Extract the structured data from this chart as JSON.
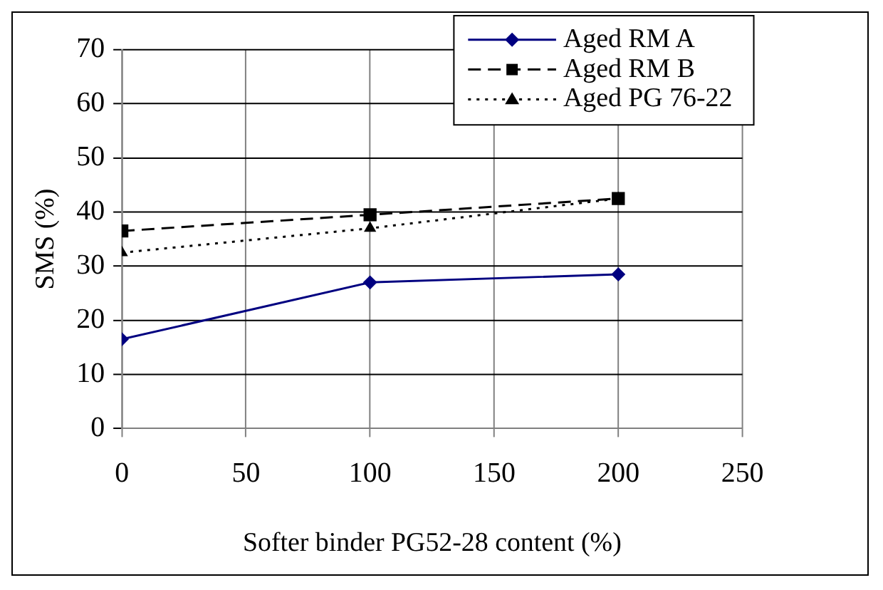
{
  "chart_data": {
    "type": "line",
    "xlabel": "Softer binder PG52-28 content (%)",
    "ylabel": "SMS (%)",
    "x": [
      0,
      100,
      200
    ],
    "series": [
      {
        "name": "Aged RM A",
        "color": "#000080",
        "values": [
          16.5,
          27,
          28.5
        ],
        "marker": "diamond",
        "line_style": "solid"
      },
      {
        "name": "Aged RM B",
        "color": "#000000",
        "values": [
          36.5,
          39.5,
          42.5
        ],
        "marker": "square",
        "line_style": "dashed"
      },
      {
        "name": "Aged PG 76-22",
        "color": "#000000",
        "values": [
          32.5,
          37,
          42.5
        ],
        "marker": "triangle",
        "line_style": "dotted"
      }
    ],
    "xlim": [
      0,
      250
    ],
    "xticks": [
      0,
      50,
      100,
      150,
      200,
      250
    ],
    "ylim": [
      0,
      70
    ],
    "yticks": [
      0,
      10,
      20,
      30,
      40,
      50,
      60,
      70
    ],
    "grid": true,
    "legend": "top right"
  }
}
